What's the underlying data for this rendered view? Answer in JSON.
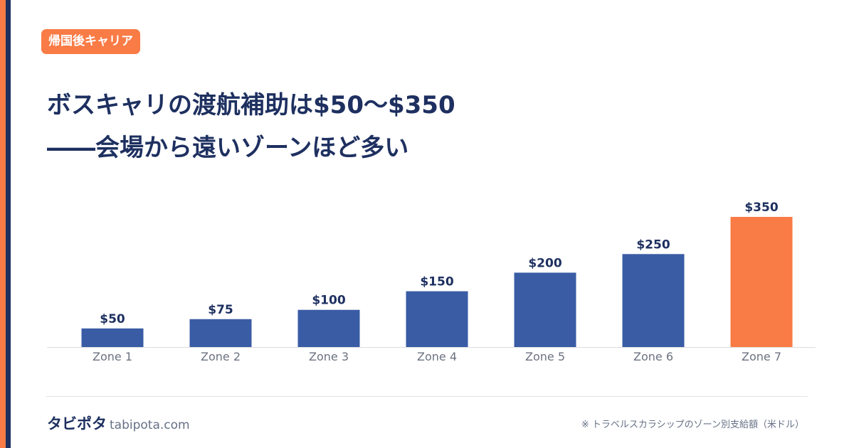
{
  "tag": "帰国後キャリア",
  "title": {
    "line1": "ボスキャリの渡航補助は$50〜$350",
    "line2": "――会場から遠いゾーンほど多い"
  },
  "chart_data": {
    "type": "bar",
    "categories": [
      "Zone 1",
      "Zone 2",
      "Zone 3",
      "Zone 4",
      "Zone 5",
      "Zone 6",
      "Zone 7"
    ],
    "values": [
      50,
      75,
      100,
      150,
      200,
      250,
      350
    ],
    "value_labels": [
      "$50",
      "$75",
      "$100",
      "$150",
      "$200",
      "$250",
      "$350"
    ],
    "highlight_index": 6,
    "colors": {
      "default": "#3a5ca5",
      "highlight": "#f97b45"
    },
    "ylim": [
      0,
      350
    ],
    "grid": false,
    "legend": "none",
    "title": "",
    "xlabel": "",
    "ylabel": ""
  },
  "footer": {
    "brand": "タビポタ",
    "url": "tabipota.com",
    "note": "※ トラベルスカラシップのゾーン別支給額（米ドル）"
  },
  "colors": {
    "accent": "#f97b45",
    "navy": "#1e3060"
  }
}
